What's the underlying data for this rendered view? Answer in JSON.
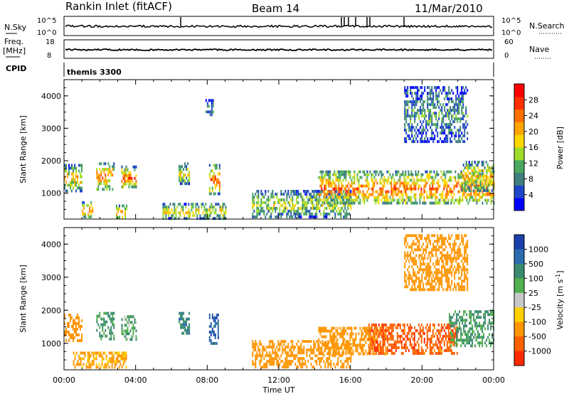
{
  "header": {
    "station": "Rankin Inlet (fitACF)",
    "beam": "Beam 14",
    "date": "11/Mar/2010"
  },
  "aux": {
    "nsky_label": "N.Sky",
    "nsky_ticks": [
      "10^5",
      "10^0"
    ],
    "nsearch_label": "N.Search",
    "nsearch_ticks": [
      "10^5",
      "10^0"
    ],
    "freq_label": "Freq.",
    "freq_unit": "[MHz]",
    "freq_ticks": [
      "18",
      "8"
    ],
    "nave_label": "Nave",
    "nave_ticks": [
      "60",
      "0"
    ],
    "cpid_label": "CPID",
    "cpid_value": "themis 3300"
  },
  "colors": {
    "power_scale": [
      "#0000ff",
      "#1f46c8",
      "#3d7f7d",
      "#4aa860",
      "#9fdc2a",
      "#ffd700",
      "#ffa500",
      "#ff7000",
      "#ff3000",
      "#ff0000"
    ],
    "velocity_scale": [
      "#1a3faa",
      "#2b6bb0",
      "#3a8a6e",
      "#52b04e",
      "#c8c8c8",
      "#ffd000",
      "#ff9500",
      "#ff6000",
      "#ff2a00"
    ]
  },
  "chart_data": [
    {
      "type": "heatmap",
      "panel": "power",
      "ylabel": "Slant Range [km]",
      "yticks": [
        "1000",
        "2000",
        "3000",
        "4000"
      ],
      "ylim": [
        200,
        4500
      ],
      "xlim_hours": [
        0,
        24
      ],
      "colorbar_label": "Power [dB]",
      "colorbar_ticks": [
        "4",
        "8",
        "12",
        "16",
        "20",
        "24",
        "28"
      ],
      "colorbar_range": [
        0,
        32
      ],
      "regions": [
        {
          "t0": 0.0,
          "t1": 1.0,
          "r0": 1100,
          "r1": 1900,
          "v": 17
        },
        {
          "t0": 1.8,
          "t1": 2.8,
          "r0": 1150,
          "r1": 1950,
          "v": 21
        },
        {
          "t0": 3.2,
          "t1": 4.0,
          "r0": 1150,
          "r1": 1850,
          "v": 22
        },
        {
          "t0": 1.0,
          "t1": 1.6,
          "r0": 250,
          "r1": 750,
          "v": 19
        },
        {
          "t0": 2.9,
          "t1": 3.5,
          "r0": 250,
          "r1": 650,
          "v": 20
        },
        {
          "t0": 6.4,
          "t1": 7.0,
          "r0": 1300,
          "r1": 1950,
          "v": 16
        },
        {
          "t0": 8.1,
          "t1": 8.7,
          "r0": 1000,
          "r1": 1900,
          "v": 22
        },
        {
          "t0": 5.5,
          "t1": 9.0,
          "r0": 250,
          "r1": 700,
          "v": 17
        },
        {
          "t0": 7.9,
          "t1": 8.3,
          "r0": 3400,
          "r1": 3900,
          "v": 9
        },
        {
          "t0": 10.5,
          "t1": 16.0,
          "r0": 300,
          "r1": 1100,
          "v": 14
        },
        {
          "t0": 14.2,
          "t1": 24.0,
          "r0": 650,
          "r1": 1700,
          "v": 22
        },
        {
          "t0": 22.2,
          "t1": 24.0,
          "r0": 1100,
          "r1": 2000,
          "v": 18
        },
        {
          "t0": 19.0,
          "t1": 22.5,
          "r0": 2600,
          "r1": 4300,
          "v": 9
        }
      ]
    },
    {
      "type": "heatmap",
      "panel": "velocity",
      "ylabel": "Slant Range [km]",
      "yticks": [
        "1000",
        "2000",
        "3000",
        "4000"
      ],
      "ylim": [
        200,
        4500
      ],
      "xlim_hours": [
        0,
        24
      ],
      "xticks": [
        "00:00",
        "04:00",
        "08:00",
        "12:00",
        "16:00",
        "20:00",
        "00:00"
      ],
      "xlabel": "Time UT",
      "colorbar_label": "Velocity [m s^-1]",
      "colorbar_ticks": [
        "1000",
        "500",
        "100",
        "25",
        "-25",
        "-100",
        "-500",
        "-1000"
      ],
      "regions": [
        {
          "t0": 0.0,
          "t1": 1.0,
          "r0": 1100,
          "r1": 1900,
          "v": -300
        },
        {
          "t0": 1.8,
          "t1": 2.8,
          "r0": 1150,
          "r1": 1950,
          "v": 150
        },
        {
          "t0": 3.2,
          "t1": 4.0,
          "r0": 1150,
          "r1": 1850,
          "v": 80
        },
        {
          "t0": 0.5,
          "t1": 3.5,
          "r0": 250,
          "r1": 750,
          "v": -120
        },
        {
          "t0": 6.4,
          "t1": 7.0,
          "r0": 1300,
          "r1": 1950,
          "v": 400
        },
        {
          "t0": 8.1,
          "t1": 8.6,
          "r0": 1000,
          "r1": 1900,
          "v": 800
        },
        {
          "t0": 10.5,
          "t1": 16.0,
          "r0": 300,
          "r1": 1100,
          "v": -250
        },
        {
          "t0": 14.2,
          "t1": 18.0,
          "r0": 650,
          "r1": 1500,
          "v": -250
        },
        {
          "t0": 17.0,
          "t1": 22.0,
          "r0": 700,
          "r1": 1600,
          "v": -800
        },
        {
          "t0": 21.5,
          "t1": 24.0,
          "r0": 900,
          "r1": 2000,
          "v": 120
        },
        {
          "t0": 19.0,
          "t1": 22.5,
          "r0": 2600,
          "r1": 4300,
          "v": -300
        }
      ]
    }
  ]
}
